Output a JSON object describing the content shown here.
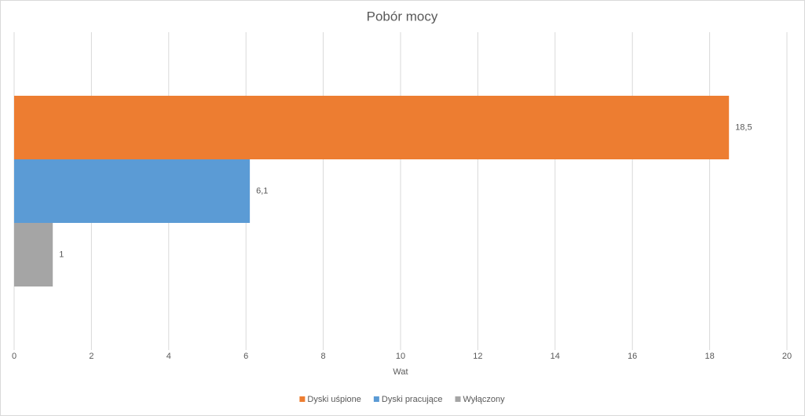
{
  "chart_data": {
    "type": "bar",
    "orientation": "horizontal",
    "title": "Pobór mocy",
    "x_label": "Wat",
    "categories": [
      null
    ],
    "series": [
      {
        "name": "Dyski uśpione",
        "color": "#ed7d31",
        "values": [
          18.5
        ],
        "value_labels": [
          "18,5"
        ]
      },
      {
        "name": "Dyski pracujące",
        "color": "#5b9bd5",
        "values": [
          6.1
        ],
        "value_labels": [
          "6,1"
        ]
      },
      {
        "name": "Wyłączony",
        "color": "#a5a5a5",
        "values": [
          1
        ],
        "value_labels": [
          "1"
        ]
      }
    ],
    "xlim": [
      0,
      20
    ],
    "xticks": [
      0,
      2,
      4,
      6,
      8,
      10,
      12,
      14,
      16,
      18,
      20
    ],
    "grid": true,
    "legend": "bottom"
  }
}
